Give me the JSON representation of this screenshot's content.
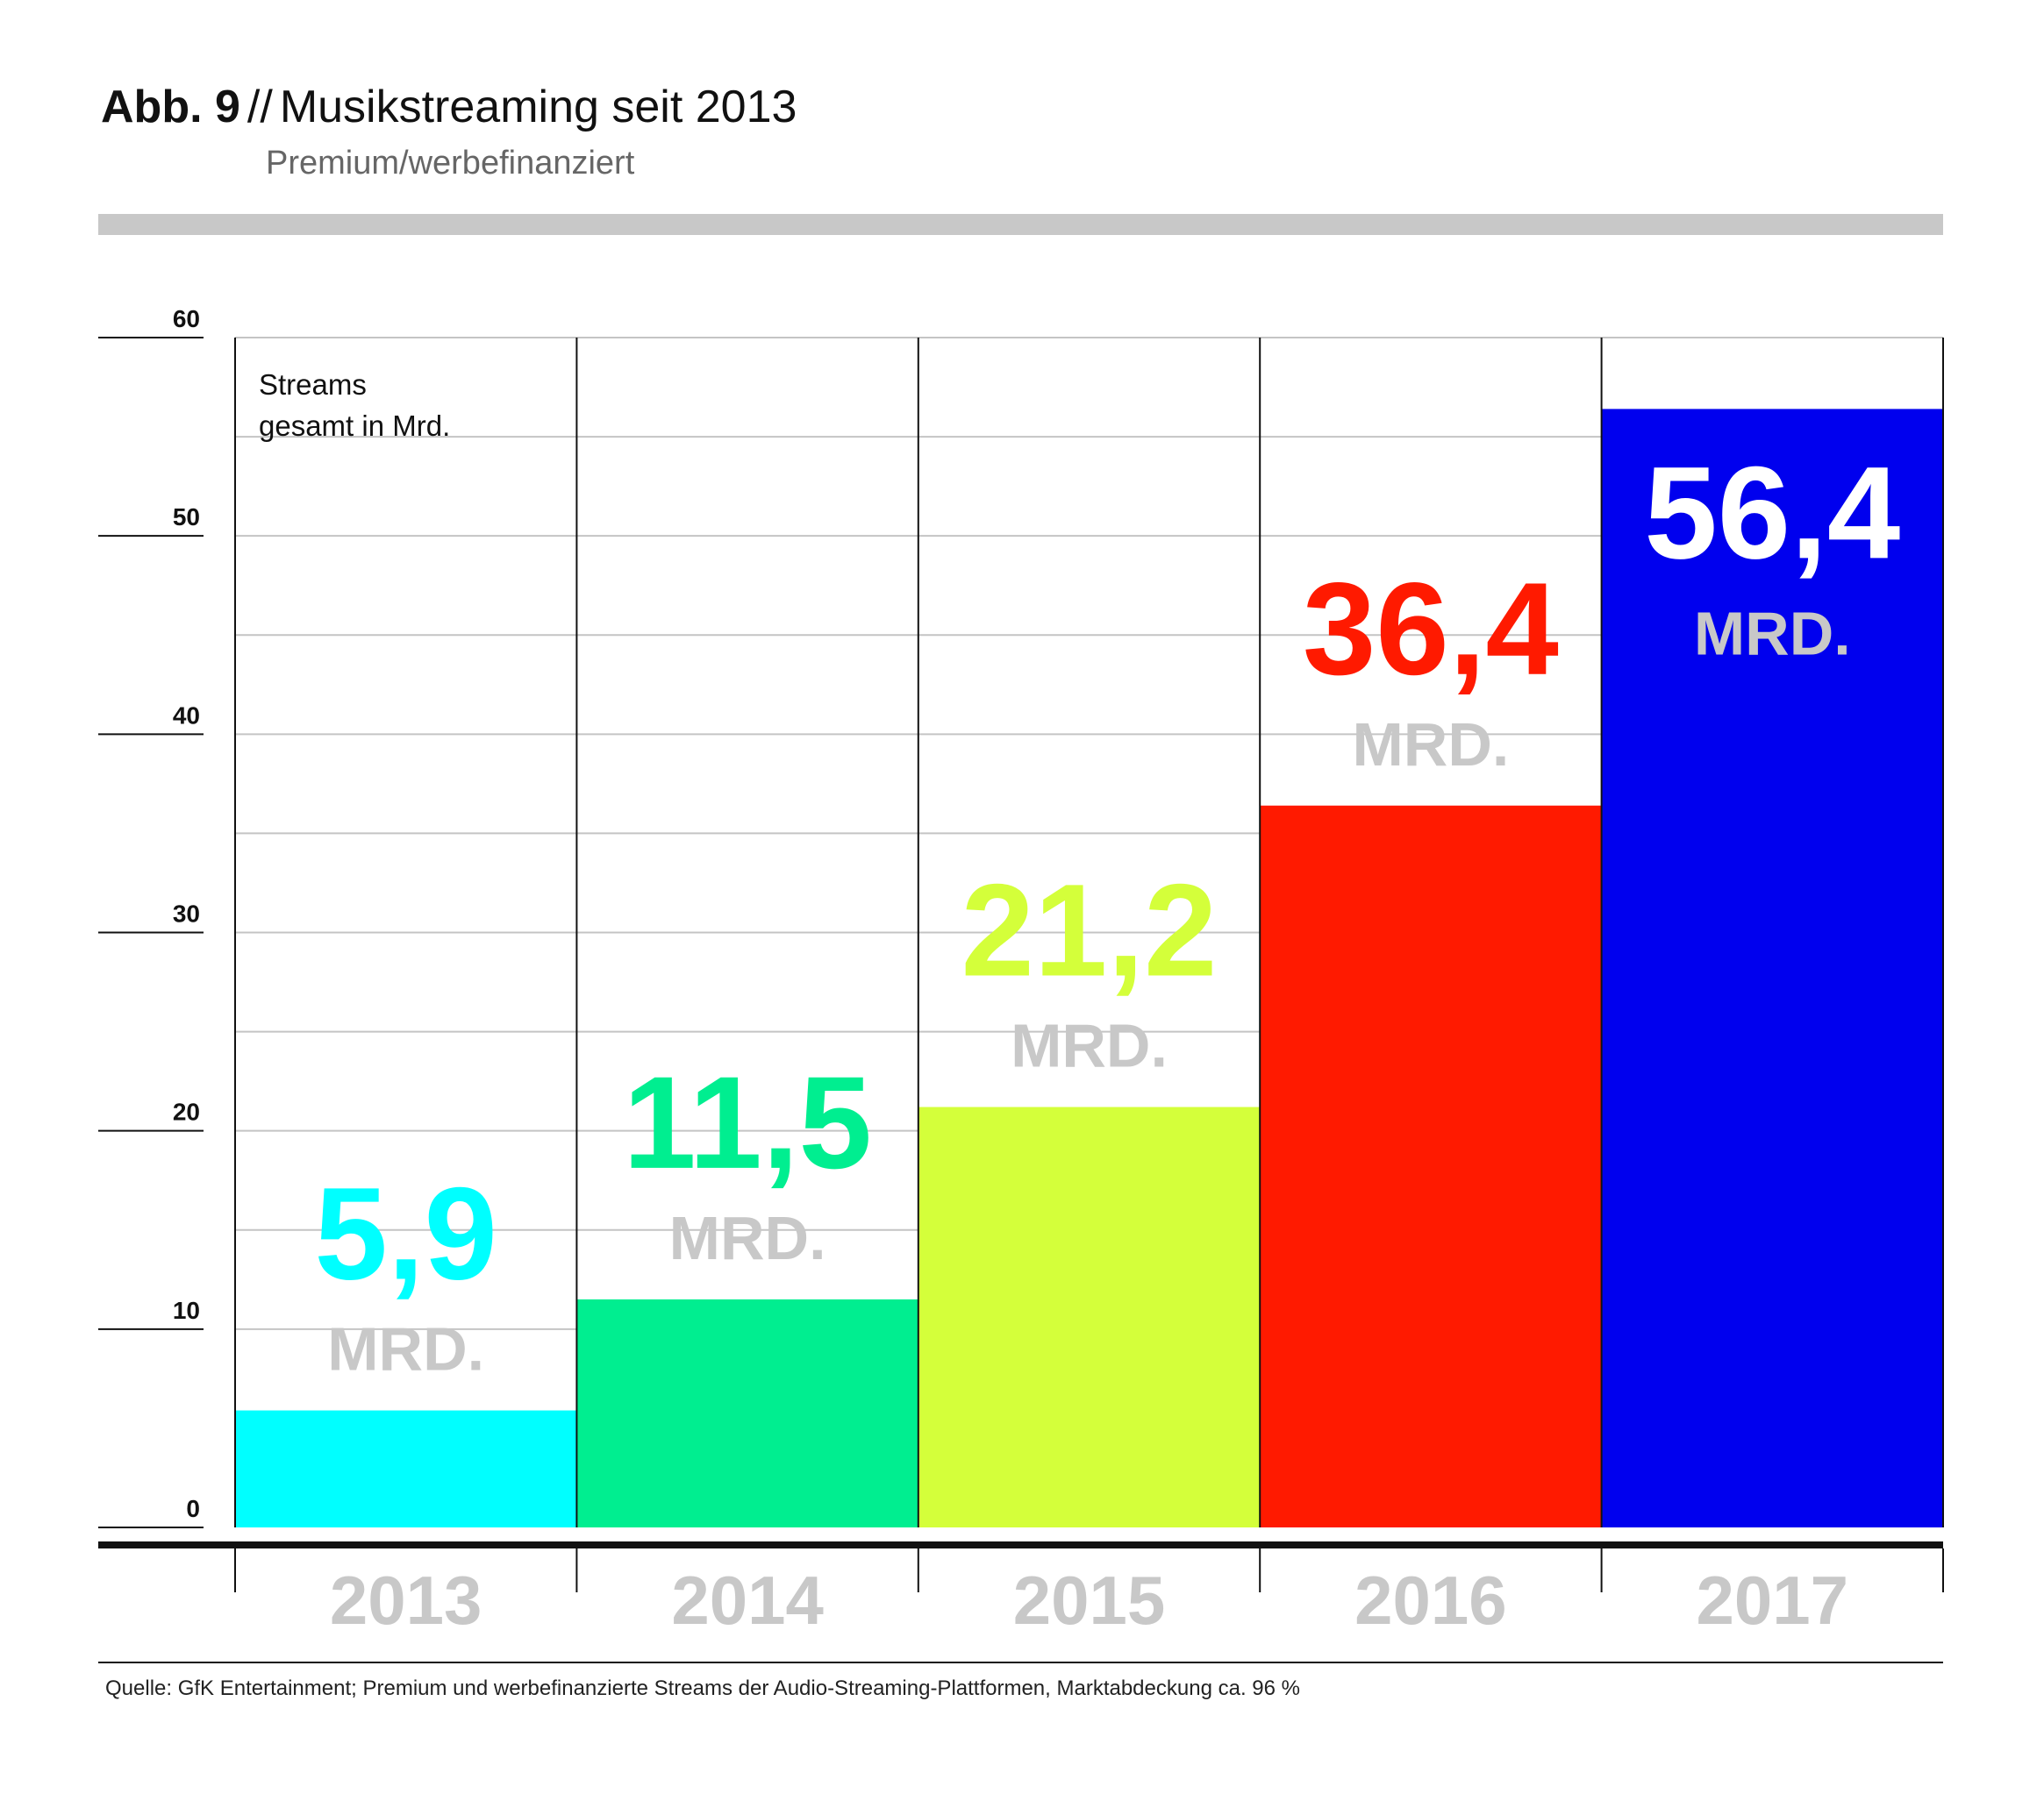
{
  "figure": {
    "label": "Abb. 9",
    "separator": "//",
    "title": "Musikstreaming seit 2013",
    "subtitle": "Premium/werbefinanziert"
  },
  "chart_data": {
    "type": "bar",
    "categories": [
      "2013",
      "2014",
      "2015",
      "2016",
      "2017"
    ],
    "values": [
      5.9,
      11.5,
      21.2,
      36.4,
      56.4
    ],
    "value_labels": [
      "5,9",
      "11,5",
      "21,2",
      "36,4",
      "56,4"
    ],
    "unit_label": "MRD.",
    "ylabel": "Streams gesamt in Mrd.",
    "ylim": [
      0,
      60
    ],
    "yticks": [
      0,
      10,
      20,
      30,
      40,
      50,
      60
    ],
    "grid": true,
    "colors": [
      "#00ffff",
      "#00ee90",
      "#d4ff3a",
      "#ff1a00",
      "#0000ee"
    ],
    "label_color": "#c8c8c8"
  },
  "source": "Quelle: GfK Entertainment; Premium und werbefinanzierte Streams der Audio-Streaming-Plattformen, Marktabdeckung ca. 96 %"
}
